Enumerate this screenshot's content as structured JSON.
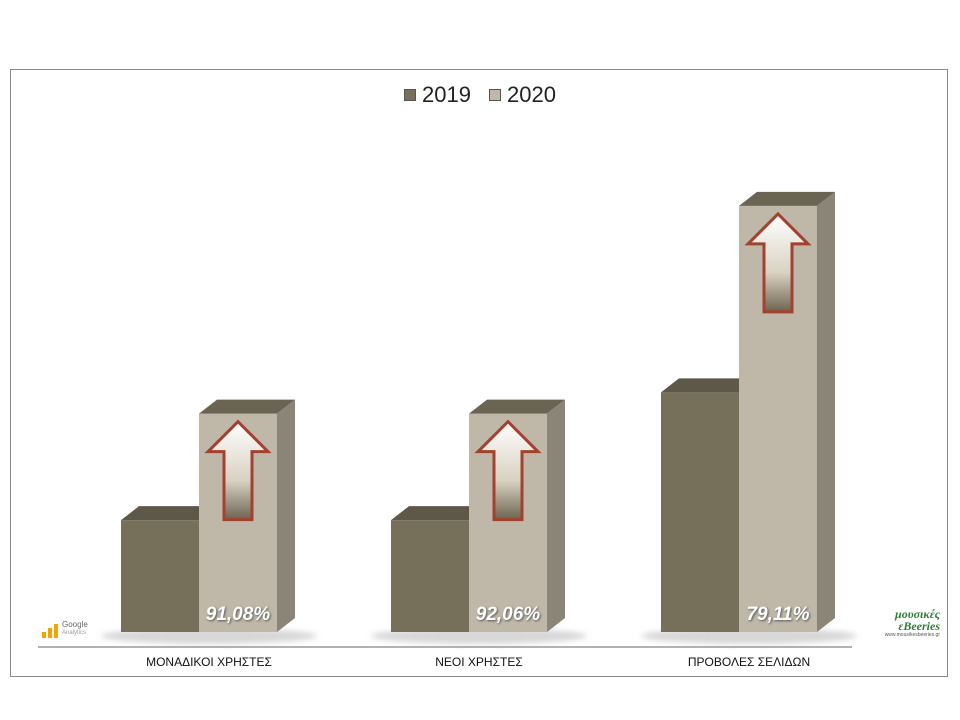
{
  "colors": {
    "series_2019": "#766f5a",
    "series_2019_top": "#5e5848",
    "series_2020": "#bfb8a8",
    "series_2020_side": "#8a8576",
    "series_2020_top": "#6a6553",
    "arrow_border": "#a3412f",
    "baseline": "#666666"
  },
  "icons": {
    "ga": "google-analytics-logo",
    "brand": "mousikes-eveeries-logo",
    "growth": "up-arrow-icon"
  },
  "logos": {
    "ga_text": "Google",
    "ga_sub": "Analytics",
    "brand_name_1": "μουσικές",
    "brand_name_2": "εBeeries",
    "brand_url": "www.mousikesbeeries.gr"
  },
  "chart_data": {
    "type": "bar",
    "categories": [
      "ΜΟΝΑΔΙΚΟΙ ΧΡΗΣΤΕΣ",
      "ΝΕΟΙ ΧΡΗΣΤΕΣ",
      "ΠΡΟΒΟΛΕΣ ΣΕΛΙΔΩΝ"
    ],
    "series": [
      {
        "name": "2019",
        "values": [
          21,
          21,
          45
        ]
      },
      {
        "name": "2020",
        "values": [
          41,
          41,
          80
        ]
      }
    ],
    "annotations": [
      "91,08%",
      "92,06%",
      "79,11%"
    ],
    "ylim": [
      0,
      92
    ],
    "legend": "top-center",
    "grid": false,
    "title": "",
    "xlabel": "",
    "ylabel": ""
  }
}
